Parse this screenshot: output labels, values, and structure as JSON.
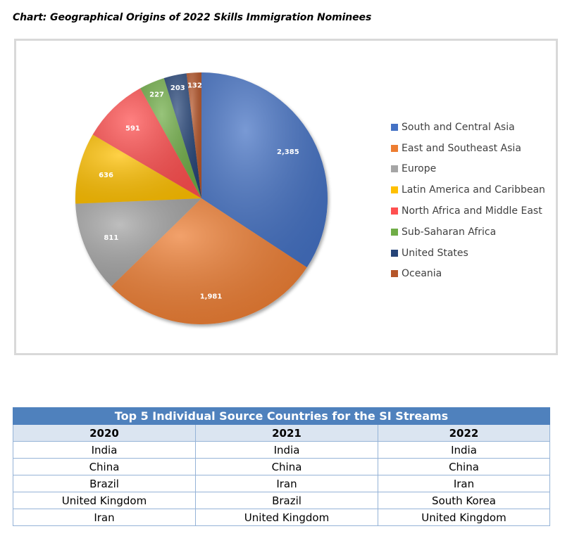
{
  "caption": "Chart: Geographical Origins of 2022 Skills Immigration Nominees",
  "chart_data": {
    "type": "pie",
    "title": "",
    "categories": [
      "South and Central Asia",
      "East and Southeast Asia",
      "Europe",
      "Latin America and Caribbean",
      "North Africa and Middle East",
      "Sub-Saharan Africa",
      "United States",
      "Oceania"
    ],
    "values": [
      2385,
      1981,
      811,
      636,
      591,
      227,
      203,
      132
    ],
    "value_labels": [
      "2,385",
      "1,981",
      "811",
      "636",
      "591",
      "227",
      "203",
      "132"
    ],
    "colors": [
      "#4472c4",
      "#ed7d31",
      "#a5a5a5",
      "#ffc000",
      "#ff5050",
      "#70ad47",
      "#264478",
      "#b5562a"
    ],
    "legend_position": "right",
    "start_angle_deg": 0,
    "direction": "clockwise"
  },
  "table": {
    "title": "Top 5 Individual Source Countries for the SI Streams",
    "headers": [
      "2020",
      "2021",
      "2022"
    ],
    "rows": [
      [
        "India",
        "India",
        "India"
      ],
      [
        "China",
        "China",
        "China"
      ],
      [
        "Brazil",
        "Iran",
        "Iran"
      ],
      [
        "United Kingdom",
        "Brazil",
        "South Korea"
      ],
      [
        "Iran",
        "United Kingdom",
        "United Kingdom"
      ]
    ]
  }
}
